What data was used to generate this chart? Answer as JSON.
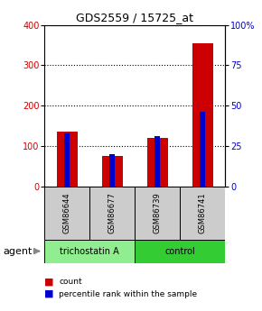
{
  "title": "GDS2559 / 15725_at",
  "samples": [
    "GSM86644",
    "GSM86677",
    "GSM86739",
    "GSM86741"
  ],
  "red_values": [
    135,
    75,
    120,
    355
  ],
  "blue_values": [
    33,
    20,
    31,
    46
  ],
  "left_ylim": [
    0,
    400
  ],
  "right_ylim": [
    0,
    100
  ],
  "left_yticks": [
    0,
    100,
    200,
    300,
    400
  ],
  "right_yticks": [
    0,
    25,
    50,
    75,
    100
  ],
  "right_yticklabels": [
    "0",
    "25",
    "50",
    "75",
    "100%"
  ],
  "red_color": "#cc0000",
  "blue_color": "#0000cc",
  "red_bar_width": 0.45,
  "blue_bar_width": 0.12,
  "groups": [
    {
      "label": "trichostatin A",
      "spans": [
        0,
        1
      ],
      "color": "#90ee90"
    },
    {
      "label": "control",
      "spans": [
        2,
        3
      ],
      "color": "#33cc33"
    }
  ],
  "agent_label": "agent",
  "legend_red_label": "count",
  "legend_blue_label": "percentile rank within the sample",
  "sample_box_color": "#cccccc",
  "background_color": "#ffffff"
}
